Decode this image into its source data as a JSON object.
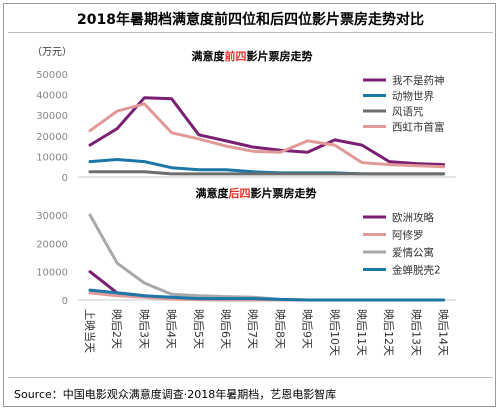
{
  "title": "2018年暑期档满意度前四位和后四位影片票房走势对比",
  "source": "Source：中国电影观众满意度调查·2018年暑期档，艺恩电影智库",
  "unit_label": "（万元）",
  "x_categories": [
    "上映当天",
    "映后2天",
    "映后3天",
    "映后4天",
    "映后5天",
    "映后6天",
    "映后7天",
    "映后8天",
    "映后9天",
    "映后10天",
    "映后11天",
    "映后12天",
    "映后13天",
    "映后14天"
  ],
  "top_chart": {
    "title_parts": [
      "满意度",
      "前四",
      "影片票房走势"
    ],
    "highlight_color": "#e8322c"
  },
  "bottom_chart": {
    "title_parts": [
      "满意度",
      "后四",
      "影片票房走势"
    ],
    "highlight_color": "#e8322c"
  },
  "chart_data": [
    {
      "type": "line",
      "title": "满意度前四影片票房走势",
      "ylabel": "（万元）",
      "ylim": [
        0,
        50000
      ],
      "yticks": [
        "50000",
        "40000",
        "30000",
        "20000",
        "10000",
        "0"
      ],
      "legend_position": "right",
      "categories": [
        "上映当天",
        "映后2天",
        "映后3天",
        "映后4天",
        "映后5天",
        "映后6天",
        "映后7天",
        "映后8天",
        "映后9天",
        "映后10天",
        "映后11天",
        "映后12天",
        "映后13天",
        "映后14天"
      ],
      "series": [
        {
          "name": "我不是药神",
          "color": "#7b1f72",
          "values": [
            15500,
            23500,
            38500,
            38000,
            20500,
            17500,
            14500,
            13000,
            12000,
            18000,
            15500,
            7500,
            6500,
            6000
          ]
        },
        {
          "name": "动物世界",
          "color": "#1d76a8",
          "values": [
            7500,
            8500,
            7500,
            4500,
            3500,
            3500,
            2500,
            2000,
            2000,
            2000,
            1500,
            1500,
            1500,
            1500
          ]
        },
        {
          "name": "风语咒",
          "color": "#6d6d6d",
          "values": [
            2500,
            2500,
            2500,
            1500,
            1500,
            1500,
            1500,
            1500,
            1500,
            1500,
            1500,
            1500,
            1500,
            1500
          ]
        },
        {
          "name": "西虹市首富",
          "color": "#e29a98",
          "values": [
            22500,
            32000,
            35500,
            21500,
            18500,
            15000,
            12500,
            12000,
            17500,
            15500,
            7000,
            6000,
            5500,
            5000
          ]
        }
      ]
    },
    {
      "type": "line",
      "title": "满意度后四影片票房走势",
      "ylim": [
        0,
        30000
      ],
      "yticks": [
        "30000",
        "20000",
        "10000",
        "0"
      ],
      "legend_position": "right",
      "categories": [
        "上映当天",
        "映后2天",
        "映后3天",
        "映后4天",
        "映后5天",
        "映后6天",
        "映后7天",
        "映后8天",
        "映后9天",
        "映后10天",
        "映后11天",
        "映后12天",
        "映后13天",
        "映后14天"
      ],
      "series": [
        {
          "name": "欧洲攻略",
          "color": "#7b1f72",
          "values": [
            10000,
            2500,
            1500,
            500,
            300,
            200,
            100,
            0,
            0,
            0,
            0,
            0,
            0,
            0
          ]
        },
        {
          "name": "阿修罗",
          "color": "#e29a98",
          "values": [
            2500,
            1500,
            1000,
            300,
            100,
            0,
            0,
            0,
            0,
            0,
            0,
            0,
            0,
            0
          ]
        },
        {
          "name": "爱情公寓",
          "color": "#a9a9a9",
          "values": [
            30000,
            13000,
            6000,
            2000,
            1500,
            1200,
            1000,
            200,
            0,
            0,
            0,
            0,
            0,
            0
          ]
        },
        {
          "name": "金蝉脱壳2",
          "color": "#1d76a8",
          "values": [
            3500,
            2500,
            1500,
            1000,
            500,
            500,
            500,
            200,
            0,
            0,
            0,
            0,
            0,
            0
          ]
        }
      ]
    }
  ]
}
